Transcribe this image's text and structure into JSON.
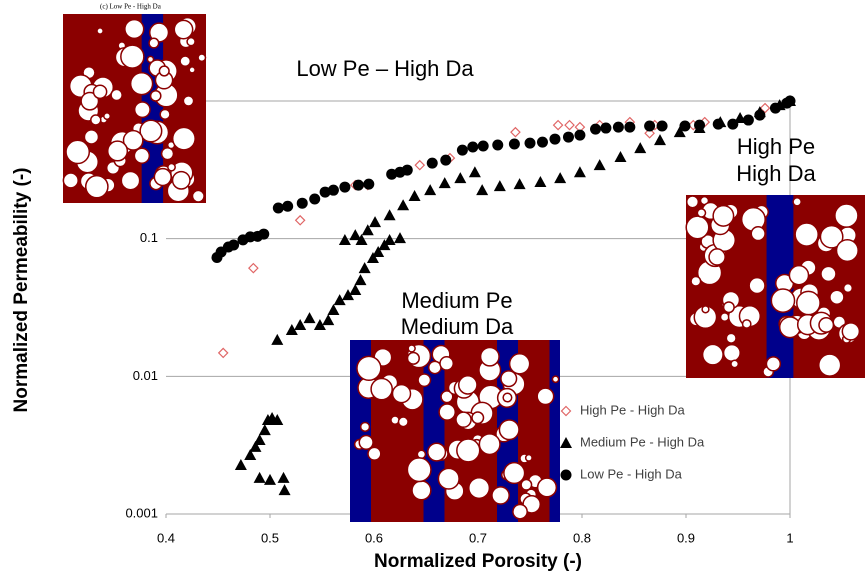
{
  "chart_data": {
    "type": "scatter",
    "x_label": "Normalized Porosity (-)",
    "y_label": "Normalized Permeability (-)",
    "xlim": [
      0.4,
      1
    ],
    "xticks": [
      0.4,
      0.5,
      0.6,
      0.7,
      0.8,
      0.9,
      1
    ],
    "ylim": [
      0.001,
      1
    ],
    "yticks": [
      0.001,
      0.01,
      0.1
    ],
    "log_y": true,
    "grid": true,
    "legend": "lower right",
    "annotations": [
      "(c) Low Pe - High Da",
      "Low Pe – High Da",
      "High Pe",
      "High Da",
      "Medium Pe",
      "Medium Da"
    ],
    "series": [
      {
        "name": "High Pe - High Da",
        "color": "#e06666",
        "marker": "diamond",
        "x": [
          0.455,
          0.484,
          0.529,
          0.582,
          0.587,
          0.594,
          0.644,
          0.673,
          0.736,
          0.777,
          0.788,
          0.798,
          0.817,
          0.846,
          0.865,
          0.87,
          0.907,
          0.918,
          0.976,
          1.0
        ],
        "values": [
          0.0148,
          0.0611,
          0.136,
          0.245,
          0.245,
          0.245,
          0.342,
          0.385,
          0.594,
          0.668,
          0.668,
          0.646,
          0.668,
          0.703,
          0.583,
          0.668,
          0.668,
          0.703,
          0.888,
          1.0
        ]
      },
      {
        "name": "Medium Pe - High Da",
        "color": "#000000",
        "marker": "triangle",
        "x": [
          0.472,
          0.481,
          0.486,
          0.49,
          0.495,
          0.498,
          0.502,
          0.507,
          0.49,
          0.5,
          0.513,
          0.514,
          0.507,
          0.521,
          0.529,
          0.538,
          0.548,
          0.556,
          0.561,
          0.567,
          0.575,
          0.582,
          0.587,
          0.591,
          0.599,
          0.604,
          0.61,
          0.615,
          0.625,
          0.572,
          0.582,
          0.588,
          0.594,
          0.601,
          0.615,
          0.628,
          0.639,
          0.654,
          0.668,
          0.683,
          0.697,
          0.704,
          0.721,
          0.74,
          0.76,
          0.779,
          0.798,
          0.817,
          0.837,
          0.856,
          0.875,
          0.894,
          0.913,
          0.933,
          0.952,
          0.971,
          0.99,
          1.0
        ],
        "values": [
          0.00227,
          0.00268,
          0.00307,
          0.00345,
          0.00407,
          0.00482,
          0.00498,
          0.00482,
          0.00183,
          0.00177,
          0.00183,
          0.00149,
          0.0184,
          0.0217,
          0.0236,
          0.0265,
          0.0236,
          0.0256,
          0.0303,
          0.0358,
          0.0389,
          0.0424,
          0.05,
          0.0611,
          0.0723,
          0.08,
          0.0898,
          0.0978,
          0.101,
          0.0978,
          0.106,
          0.0978,
          0.115,
          0.132,
          0.148,
          0.175,
          0.204,
          0.225,
          0.253,
          0.275,
          0.304,
          0.225,
          0.241,
          0.249,
          0.258,
          0.275,
          0.304,
          0.342,
          0.392,
          0.455,
          0.52,
          0.594,
          0.636,
          0.703,
          0.752,
          0.83,
          0.933,
          1.0
        ]
      },
      {
        "name": "Low Pe - High Da",
        "color": "#000000",
        "marker": "circle",
        "x": [
          0.449,
          0.453,
          0.46,
          0.465,
          0.474,
          0.481,
          0.488,
          0.494,
          0.508,
          0.517,
          0.531,
          0.543,
          0.553,
          0.561,
          0.572,
          0.585,
          0.595,
          0.617,
          0.625,
          0.632,
          0.656,
          0.669,
          0.685,
          0.695,
          0.705,
          0.719,
          0.735,
          0.75,
          0.762,
          0.774,
          0.787,
          0.798,
          0.813,
          0.823,
          0.835,
          0.846,
          0.865,
          0.877,
          0.899,
          0.913,
          0.931,
          0.945,
          0.96,
          0.971,
          0.986,
          0.997,
          1.0
        ],
        "values": [
          0.073,
          0.08,
          0.087,
          0.09,
          0.098,
          0.103,
          0.104,
          0.108,
          0.167,
          0.172,
          0.181,
          0.194,
          0.218,
          0.225,
          0.237,
          0.245,
          0.249,
          0.294,
          0.304,
          0.315,
          0.354,
          0.372,
          0.44,
          0.463,
          0.471,
          0.479,
          0.487,
          0.494,
          0.503,
          0.529,
          0.547,
          0.565,
          0.625,
          0.636,
          0.646,
          0.646,
          0.658,
          0.658,
          0.658,
          0.668,
          0.679,
          0.679,
          0.727,
          0.79,
          0.888,
          0.966,
          1.0
        ]
      }
    ]
  }
}
